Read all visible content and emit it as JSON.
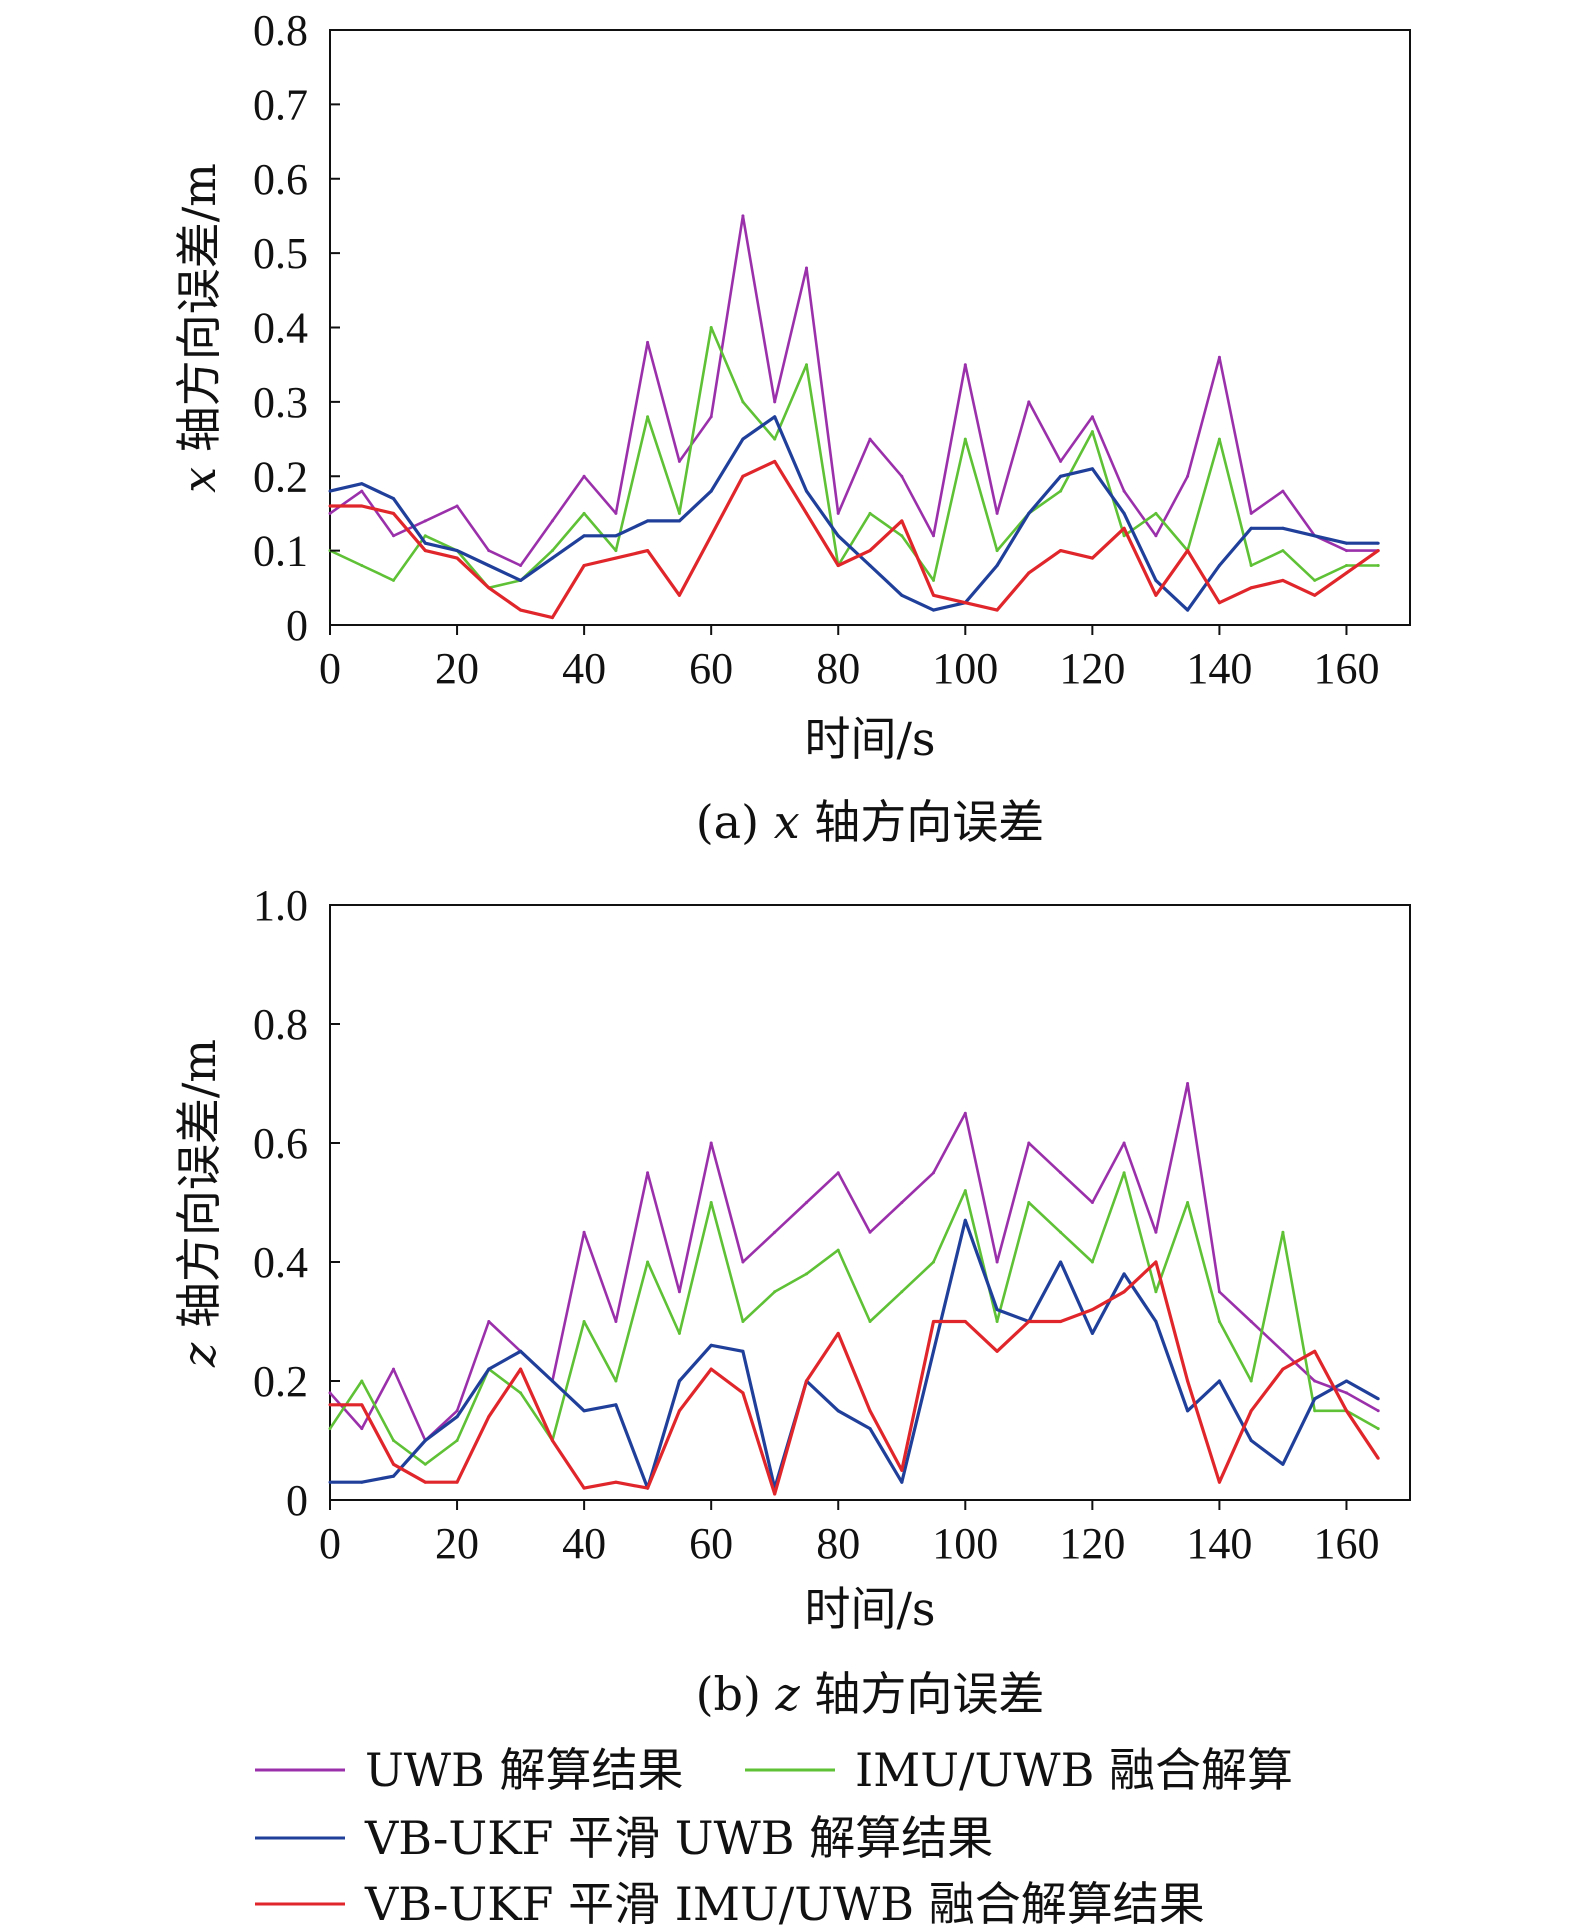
{
  "colors": {
    "uwb": "#9b30ab",
    "imu_uwb": "#5fc136",
    "vb_uwb": "#1f3f9a",
    "vb_imu_uwb": "#e0262b",
    "axis": "#111111"
  },
  "legend": [
    {
      "label": "UWB 解算结果",
      "color_key": "uwb"
    },
    {
      "label": "IMU/UWB 融合解算",
      "color_key": "imu_uwb"
    },
    {
      "label": "VB-UKF 平滑 UWB 解算结果",
      "color_key": "vb_uwb"
    },
    {
      "label": "VB-UKF 平滑 IMU/UWB 融合解算结果",
      "color_key": "vb_imu_uwb"
    }
  ],
  "chart_data": [
    {
      "type": "line",
      "caption_prefix": "(a) ",
      "caption_var": "x",
      "caption_suffix": " 轴方向误差",
      "ylabel_var": "x",
      "ylabel_text": " 轴方向误差/m",
      "xlabel": "时间/s",
      "xlim": [
        0,
        170
      ],
      "ylim": [
        0,
        0.8
      ],
      "xticks": [
        "0",
        "20",
        "40",
        "60",
        "80",
        "100",
        "120",
        "140",
        "160"
      ],
      "yticks": [
        "0",
        "0.1",
        "0.2",
        "0.3",
        "0.4",
        "0.5",
        "0.6",
        "0.7",
        "0.8"
      ],
      "grid": false,
      "x": [
        0,
        5,
        10,
        15,
        20,
        25,
        30,
        35,
        40,
        45,
        50,
        55,
        60,
        65,
        70,
        75,
        80,
        85,
        90,
        95,
        100,
        105,
        110,
        115,
        120,
        125,
        130,
        135,
        140,
        145,
        150,
        155,
        160,
        165
      ],
      "series": [
        {
          "name": "UWB 解算结果",
          "color_key": "uwb",
          "values": [
            0.15,
            0.18,
            0.12,
            0.14,
            0.16,
            0.1,
            0.08,
            0.14,
            0.2,
            0.15,
            0.38,
            0.22,
            0.28,
            0.55,
            0.3,
            0.48,
            0.15,
            0.25,
            0.2,
            0.12,
            0.35,
            0.15,
            0.3,
            0.22,
            0.28,
            0.18,
            0.12,
            0.2,
            0.36,
            0.15,
            0.18,
            0.12,
            0.1,
            0.1
          ]
        },
        {
          "name": "IMU/UWB 融合解算",
          "color_key": "imu_uwb",
          "values": [
            0.1,
            0.08,
            0.06,
            0.12,
            0.1,
            0.05,
            0.06,
            0.1,
            0.15,
            0.1,
            0.28,
            0.15,
            0.4,
            0.3,
            0.25,
            0.35,
            0.08,
            0.15,
            0.12,
            0.06,
            0.25,
            0.1,
            0.15,
            0.18,
            0.26,
            0.12,
            0.15,
            0.1,
            0.25,
            0.08,
            0.1,
            0.06,
            0.08,
            0.08
          ]
        },
        {
          "name": "VB-UKF 平滑 UWB 解算结果",
          "color_key": "vb_uwb",
          "values": [
            0.18,
            0.19,
            0.17,
            0.11,
            0.1,
            0.08,
            0.06,
            0.09,
            0.12,
            0.12,
            0.14,
            0.14,
            0.18,
            0.25,
            0.28,
            0.18,
            0.12,
            0.08,
            0.04,
            0.02,
            0.03,
            0.08,
            0.15,
            0.2,
            0.21,
            0.15,
            0.06,
            0.02,
            0.08,
            0.13,
            0.13,
            0.12,
            0.11,
            0.11
          ]
        },
        {
          "name": "VB-UKF 平滑 IMU/UWB 融合解算结果",
          "color_key": "vb_imu_uwb",
          "values": [
            0.16,
            0.16,
            0.15,
            0.1,
            0.09,
            0.05,
            0.02,
            0.01,
            0.08,
            0.09,
            0.1,
            0.04,
            0.12,
            0.2,
            0.22,
            0.15,
            0.08,
            0.1,
            0.14,
            0.04,
            0.03,
            0.02,
            0.07,
            0.1,
            0.09,
            0.13,
            0.04,
            0.1,
            0.03,
            0.05,
            0.06,
            0.04,
            0.07,
            0.1
          ]
        }
      ]
    },
    {
      "type": "line",
      "caption_prefix": "(b) ",
      "caption_var": "z",
      "caption_suffix": " 轴方向误差",
      "ylabel_var": "z",
      "ylabel_text": " 轴方向误差/m",
      "xlabel": "时间/s",
      "xlim": [
        0,
        170
      ],
      "ylim": [
        0,
        1.0
      ],
      "xticks": [
        "0",
        "20",
        "40",
        "60",
        "80",
        "100",
        "120",
        "140",
        "160"
      ],
      "yticks": [
        "0",
        "0.2",
        "0.4",
        "0.6",
        "0.8",
        "1.0"
      ],
      "grid": false,
      "x": [
        0,
        5,
        10,
        15,
        20,
        25,
        30,
        35,
        40,
        45,
        50,
        55,
        60,
        65,
        70,
        75,
        80,
        85,
        90,
        95,
        100,
        105,
        110,
        115,
        120,
        125,
        130,
        135,
        140,
        145,
        150,
        155,
        160,
        165
      ],
      "series": [
        {
          "name": "UWB 解算结果",
          "color_key": "uwb",
          "values": [
            0.18,
            0.12,
            0.22,
            0.1,
            0.15,
            0.3,
            0.25,
            0.2,
            0.45,
            0.3,
            0.55,
            0.35,
            0.6,
            0.4,
            0.45,
            0.5,
            0.55,
            0.45,
            0.5,
            0.55,
            0.65,
            0.4,
            0.6,
            0.55,
            0.5,
            0.6,
            0.45,
            0.7,
            0.35,
            0.3,
            0.25,
            0.2,
            0.18,
            0.15
          ]
        },
        {
          "name": "IMU/UWB 融合解算",
          "color_key": "imu_uwb",
          "values": [
            0.12,
            0.2,
            0.1,
            0.06,
            0.1,
            0.22,
            0.18,
            0.1,
            0.3,
            0.2,
            0.4,
            0.28,
            0.5,
            0.3,
            0.35,
            0.38,
            0.42,
            0.3,
            0.35,
            0.4,
            0.52,
            0.3,
            0.5,
            0.45,
            0.4,
            0.55,
            0.35,
            0.5,
            0.3,
            0.2,
            0.45,
            0.15,
            0.15,
            0.12
          ]
        },
        {
          "name": "VB-UKF 平滑 UWB 解算结果",
          "color_key": "vb_uwb",
          "values": [
            0.03,
            0.03,
            0.04,
            0.1,
            0.14,
            0.22,
            0.25,
            0.2,
            0.15,
            0.16,
            0.02,
            0.2,
            0.26,
            0.25,
            0.02,
            0.2,
            0.15,
            0.12,
            0.03,
            0.25,
            0.47,
            0.32,
            0.3,
            0.4,
            0.28,
            0.38,
            0.3,
            0.15,
            0.2,
            0.1,
            0.06,
            0.17,
            0.2,
            0.17
          ]
        },
        {
          "name": "VB-UKF 平滑 IMU/UWB 融合解算结果",
          "color_key": "vb_imu_uwb",
          "values": [
            0.16,
            0.16,
            0.06,
            0.03,
            0.03,
            0.14,
            0.22,
            0.1,
            0.02,
            0.03,
            0.02,
            0.15,
            0.22,
            0.18,
            0.01,
            0.2,
            0.28,
            0.15,
            0.05,
            0.3,
            0.3,
            0.25,
            0.3,
            0.3,
            0.32,
            0.35,
            0.4,
            0.2,
            0.03,
            0.15,
            0.22,
            0.25,
            0.15,
            0.07
          ]
        }
      ]
    }
  ]
}
